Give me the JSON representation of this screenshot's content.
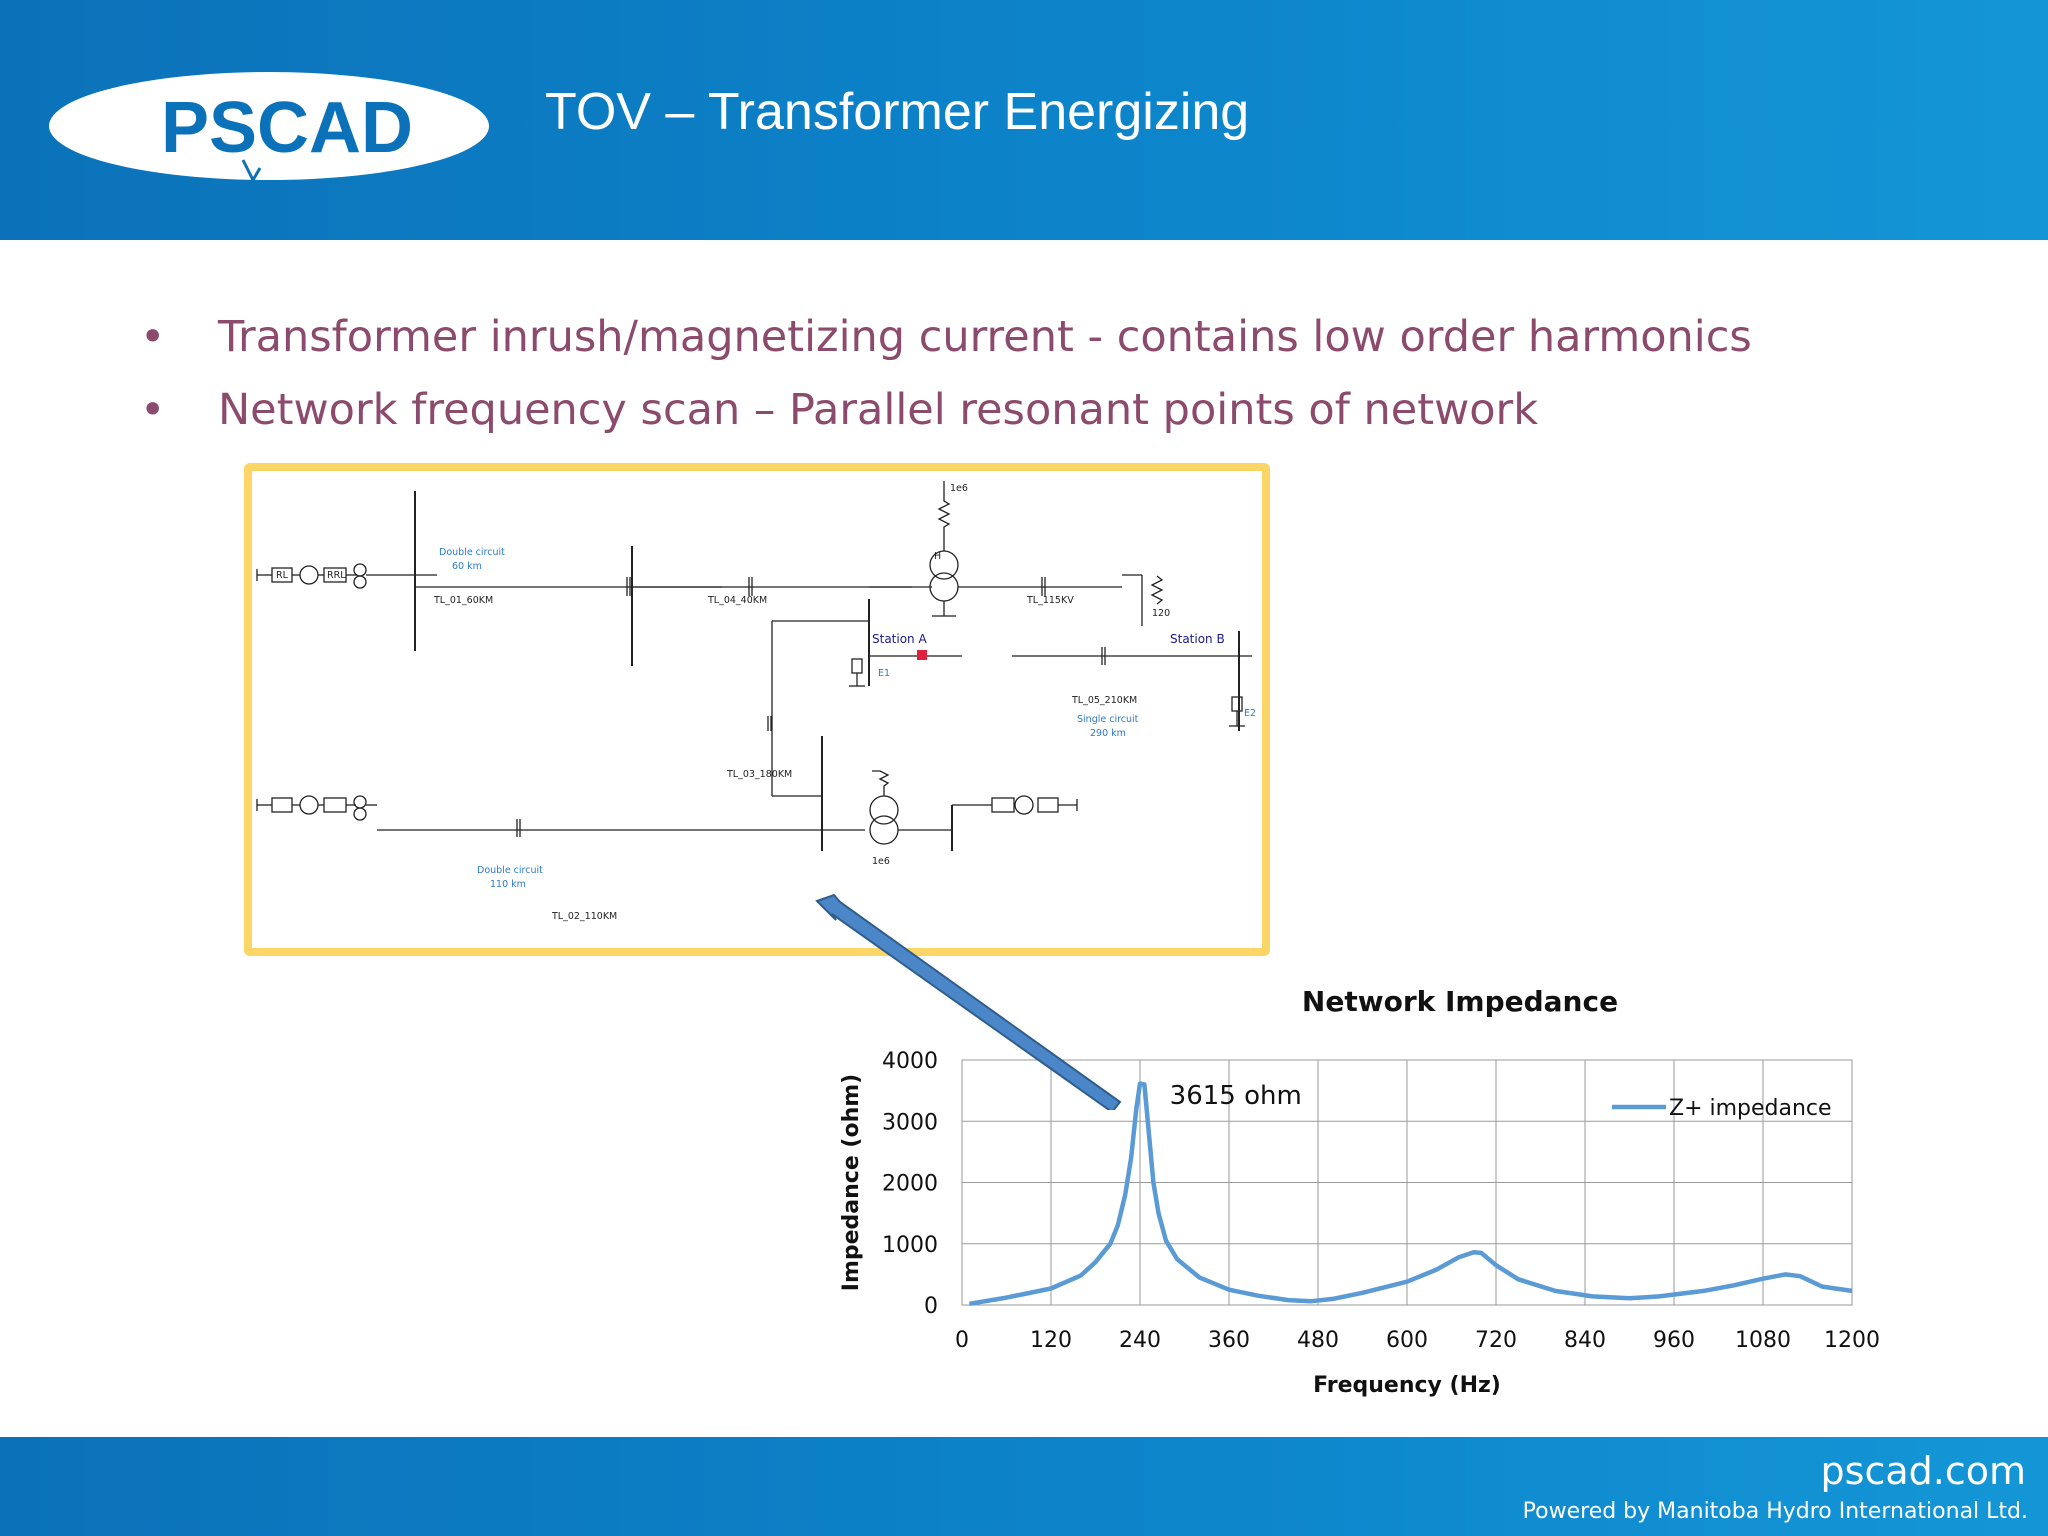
{
  "header": {
    "logo_text": "PSCAD",
    "title": "TOV – Transformer Energizing"
  },
  "bullets": [
    "Transformer inrush/magnetizing current - contains low order harmonics",
    "Network frequency scan – Parallel resonant points of network"
  ],
  "schematic": {
    "labels": {
      "dc60_a": "Double circuit",
      "dc60_b": "60 km",
      "tl01": "TL_01_60KM",
      "tl04": "TL_04_40KM",
      "tl115": "TL_115KV",
      "r120": "120",
      "r1e6_top": "1e6",
      "station_a": "Station A",
      "station_b": "Station B",
      "e1": "E1",
      "e2": "E2",
      "tl05": "TL_05_210KM",
      "sc_a": "Single circuit",
      "sc_b": "290 km",
      "tl03": "TL_03_180KM",
      "r1e6_bot": "1e6",
      "dc110_a": "Double circuit",
      "dc110_b": "110 km",
      "tl02": "TL_02_110KM",
      "rl": "RL",
      "rrl": "RRL",
      "h": "H"
    }
  },
  "chart_data": {
    "type": "line",
    "title": "Network Impedance",
    "xlabel": "Frequency (Hz)",
    "ylabel": "Impedance (ohm)",
    "xlim": [
      0,
      1200
    ],
    "ylim": [
      0,
      4000
    ],
    "xticks": [
      "0",
      "120",
      "240",
      "360",
      "480",
      "600",
      "720",
      "840",
      "960",
      "1080",
      "1200"
    ],
    "yticks": [
      "0",
      "1000",
      "2000",
      "3000",
      "4000"
    ],
    "grid": true,
    "legend": "top-right",
    "annotation": "3615 ohm",
    "series": [
      {
        "name": "Z+ impedance",
        "color": "#5b9bd5",
        "x": [
          10,
          60,
          120,
          160,
          180,
          200,
          210,
          220,
          228,
          235,
          240,
          246,
          252,
          258,
          265,
          275,
          290,
          320,
          360,
          400,
          440,
          470,
          500,
          540,
          600,
          640,
          670,
          690,
          700,
          720,
          750,
          800,
          850,
          900,
          940,
          1000,
          1040,
          1080,
          1110,
          1130,
          1160,
          1200
        ],
        "y": [
          20,
          120,
          270,
          480,
          700,
          1000,
          1300,
          1800,
          2400,
          3200,
          3615,
          3600,
          2800,
          2000,
          1500,
          1050,
          750,
          450,
          250,
          150,
          80,
          60,
          100,
          200,
          380,
          580,
          780,
          860,
          850,
          650,
          420,
          230,
          140,
          110,
          140,
          230,
          320,
          430,
          500,
          470,
          300,
          230
        ]
      }
    ]
  },
  "footer": {
    "url": "pscad.com",
    "powered": "Powered by Manitoba Hydro International Ltd."
  }
}
